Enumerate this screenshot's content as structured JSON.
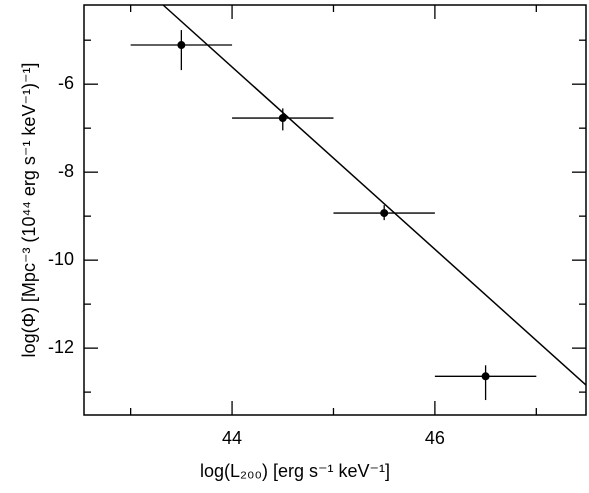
{
  "chart_data": {
    "type": "scatter",
    "x_label": "log(L₂₀₀)  [erg s⁻¹ keV⁻¹]",
    "y_label": "log(Φ)  [Mpc⁻³ (10⁴⁴ erg s⁻¹ keV⁻¹)⁻¹]",
    "xlim": [
      42.54,
      47.49
    ],
    "ylim": [
      -13.52,
      -4.2
    ],
    "xticks": [
      44,
      46
    ],
    "yticks": [
      -6,
      -8,
      -10,
      -12
    ],
    "xminorticks": [
      43,
      45,
      47
    ],
    "yminorticks": [
      -5,
      -7,
      -9,
      -11,
      -13
    ],
    "color": "#000000",
    "points": {
      "x": [
        43.5,
        44.5,
        45.5,
        46.5
      ],
      "y": [
        -5.11,
        -6.77,
        -8.93,
        -12.64
      ],
      "x_low": [
        43,
        44,
        45,
        46
      ],
      "x_high": [
        44,
        45,
        46,
        47
      ],
      "y_low": [
        -5.68,
        -7.05,
        -9.09,
        -13.18
      ],
      "y_high": [
        -4.77,
        -6.55,
        -8.75,
        -12.39
      ]
    },
    "fit_line": {
      "x": [
        43.32,
        47.49
      ],
      "y": [
        -4.2,
        -12.84
      ]
    }
  }
}
